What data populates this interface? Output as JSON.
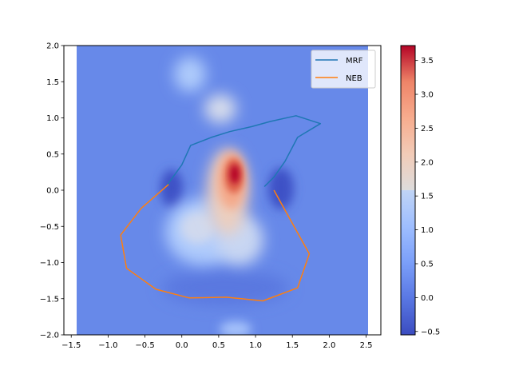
{
  "chart_data": [
    {
      "type": "heatmap",
      "title": "",
      "xlabel": "",
      "ylabel": "",
      "xlim": [
        -1.6,
        2.7
      ],
      "ylim": [
        -2.0,
        2.0
      ],
      "x_ticks": [
        -1.5,
        -1.0,
        -0.5,
        0.0,
        0.5,
        1.0,
        1.5,
        2.0,
        2.5
      ],
      "x_tick_labels": [
        "−1.5",
        "−1.0",
        "−0.5",
        "0.0",
        "0.5",
        "1.0",
        "1.5",
        "2.0",
        "2.5"
      ],
      "y_ticks": [
        -2.0,
        -1.5,
        -1.0,
        -0.5,
        0.0,
        0.5,
        1.0,
        1.5,
        2.0
      ],
      "y_tick_labels": [
        "−2.0",
        "−1.5",
        "−1.0",
        "−0.5",
        "0.0",
        "0.5",
        "1.0",
        "1.5",
        "2.0"
      ],
      "grid": false,
      "colormap": "coolwarm",
      "heatmap_extent": {
        "x": [
          -1.5,
          2.5
        ],
        "y": [
          -2.0,
          2.0
        ]
      },
      "colorbar": {
        "min": -0.55,
        "max": 3.72,
        "ticks": [
          -0.5,
          0.0,
          0.5,
          1.0,
          1.5,
          2.0,
          2.5,
          3.0,
          3.5
        ],
        "tick_labels": [
          "−0.5",
          "0.0",
          "0.5",
          "1.0",
          "1.5",
          "2.0",
          "2.5",
          "3.0",
          "3.5"
        ]
      },
      "legend_position": "top-right",
      "series": [
        {
          "name": "MRF",
          "color": "#1f77b4",
          "x": [
            -0.2,
            0.0,
            0.12,
            0.4,
            0.65,
            0.95,
            1.2,
            1.55,
            1.88,
            1.57,
            1.4,
            1.25,
            1.12
          ],
          "y": [
            0.07,
            0.35,
            0.62,
            0.73,
            0.81,
            0.88,
            0.95,
            1.03,
            0.92,
            0.73,
            0.4,
            0.18,
            0.05
          ]
        },
        {
          "name": "NEB",
          "color": "#ff7f0e",
          "x": [
            -0.18,
            -0.55,
            -0.83,
            -0.75,
            -0.35,
            0.1,
            0.6,
            1.1,
            1.57,
            1.73,
            1.25
          ],
          "y": [
            0.08,
            -0.25,
            -0.62,
            -1.08,
            -1.37,
            -1.49,
            -1.48,
            -1.53,
            -1.35,
            -0.88,
            0.0
          ]
        }
      ]
    }
  ]
}
